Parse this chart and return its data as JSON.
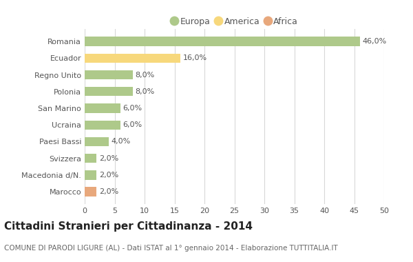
{
  "categories": [
    "Romania",
    "Ecuador",
    "Regno Unito",
    "Polonia",
    "San Marino",
    "Ucraina",
    "Paesi Bassi",
    "Svizzera",
    "Macedonia d/N.",
    "Marocco"
  ],
  "values": [
    46.0,
    16.0,
    8.0,
    8.0,
    6.0,
    6.0,
    4.0,
    2.0,
    2.0,
    2.0
  ],
  "colors": [
    "#aec98a",
    "#f7d87c",
    "#aec98a",
    "#aec98a",
    "#aec98a",
    "#aec98a",
    "#aec98a",
    "#aec98a",
    "#aec98a",
    "#e8a87c"
  ],
  "legend_labels": [
    "Europa",
    "America",
    "Africa"
  ],
  "legend_colors": [
    "#aec98a",
    "#f7d87c",
    "#e8a87c"
  ],
  "title": "Cittadini Stranieri per Cittadinanza - 2014",
  "subtitle": "COMUNE DI PARODI LIGURE (AL) - Dati ISTAT al 1° gennaio 2014 - Elaborazione TUTTITALIA.IT",
  "xlim": [
    0,
    50
  ],
  "xticks": [
    0,
    5,
    10,
    15,
    20,
    25,
    30,
    35,
    40,
    45,
    50
  ],
  "background_color": "#ffffff",
  "grid_color": "#d8d8d8",
  "bar_height": 0.55,
  "title_fontsize": 11,
  "subtitle_fontsize": 7.5,
  "label_fontsize": 8,
  "tick_fontsize": 8,
  "legend_fontsize": 9
}
